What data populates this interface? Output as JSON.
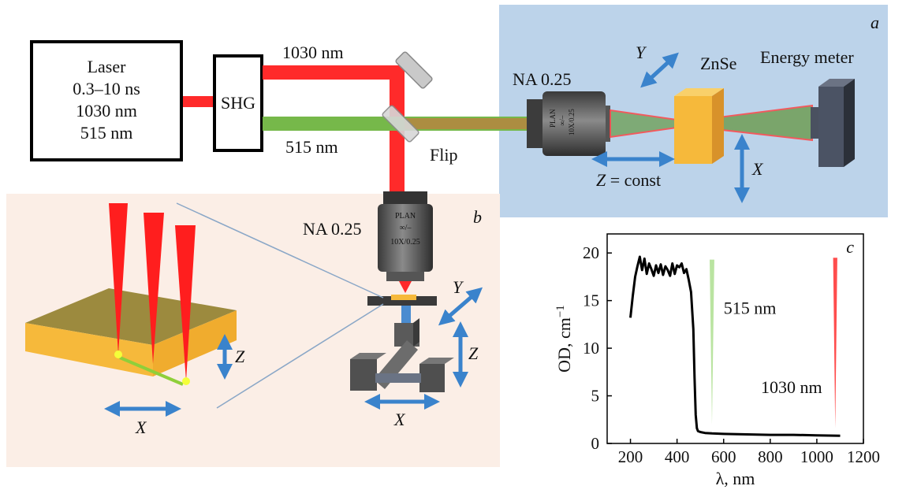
{
  "panels": {
    "a": "a",
    "b": "b",
    "c": "c"
  },
  "laser": {
    "line1": "Laser",
    "line2": "0.3–10 ns",
    "line3": "1030 nm",
    "line4": "515 nm"
  },
  "shg": "SHG",
  "beams": {
    "ir": "1030 nm",
    "green": "515 nm",
    "flip": "Flip"
  },
  "objective_label_a": "NA 0.25",
  "objective_label_b": "NA 0.25",
  "objective_text": {
    "plan": "PLAN",
    "inf": "∞/–",
    "mag": "10X/0.25"
  },
  "sample_a": "ZnSe",
  "energy_meter": "Energy meter",
  "axes_a": {
    "y": "Y",
    "x": "X",
    "z_italic": "Z",
    "z_rest": " = const"
  },
  "axes_b": {
    "y": "Y",
    "z": "Z",
    "x": "X"
  },
  "axes_b_inset": {
    "z": "Z",
    "x": "X"
  },
  "colors": {
    "ir": "#ff2a2a",
    "green": "#76b84a",
    "panel_a_bg": "#bcd3ea",
    "panel_b_bg": "#fbeee6",
    "znse": "#f6b93b",
    "arrow": "#3a83cc"
  },
  "chart_data": {
    "type": "line",
    "xlabel": "λ, nm",
    "ylabel_main": "OD, cm",
    "ylabel_sup": "−1",
    "xlim": [
      100,
      1200
    ],
    "ylim": [
      0,
      22
    ],
    "xticks": [
      200,
      400,
      600,
      800,
      1000,
      1200
    ],
    "yticks": [
      0,
      5,
      10,
      15,
      20
    ],
    "x": [
      200,
      210,
      220,
      230,
      240,
      250,
      260,
      270,
      280,
      290,
      300,
      310,
      320,
      330,
      340,
      350,
      360,
      370,
      380,
      390,
      400,
      410,
      420,
      430,
      440,
      450,
      460,
      470,
      475,
      480,
      485,
      490,
      500,
      520,
      550,
      600,
      700,
      800,
      900,
      1000,
      1100
    ],
    "y": [
      13.2,
      15.5,
      17.5,
      18.6,
      19.6,
      18.2,
      19.4,
      17.8,
      18.9,
      18.3,
      17.6,
      18.7,
      17.9,
      18.8,
      17.7,
      18.6,
      18.2,
      17.6,
      18.9,
      17.8,
      18.7,
      18.5,
      18.9,
      17.9,
      18.3,
      17.2,
      15.9,
      12.0,
      7.0,
      3.0,
      1.6,
      1.3,
      1.2,
      1.1,
      1.05,
      1.0,
      0.95,
      0.9,
      0.9,
      0.85,
      0.8
    ],
    "annotations": [
      "515 nm",
      "1030 nm"
    ]
  }
}
